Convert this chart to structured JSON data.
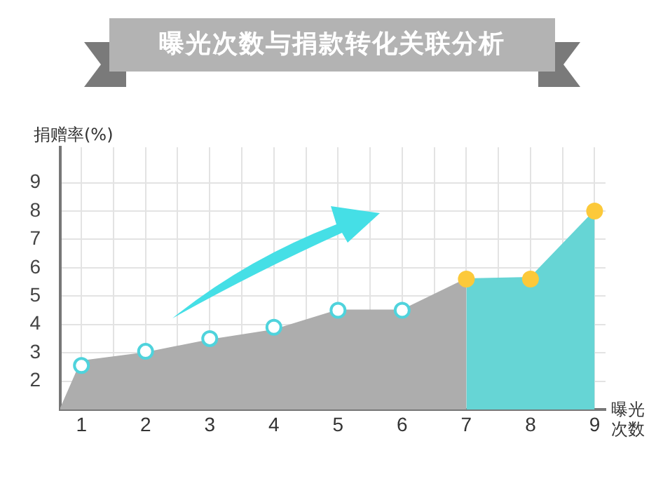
{
  "chart_data": {
    "type": "area",
    "title": "曝光次数与捐款转化关联分析",
    "xlabel": "曝光次数",
    "ylabel": "捐赠率(%)",
    "xlim": [
      0.67,
      9.17
    ],
    "ylim": [
      1,
      10.25
    ],
    "xticks": [
      1,
      {
        "value": 1.5,
        "label": null
      },
      2,
      {
        "value": 2.5,
        "label": null
      },
      3,
      {
        "value": 3.5,
        "label": null
      },
      4,
      {
        "value": 4.5,
        "label": null
      },
      5,
      {
        "value": 5.5,
        "label": null
      },
      6,
      {
        "value": 6.5,
        "label": null
      },
      7,
      {
        "value": 7.5,
        "label": null
      },
      8,
      {
        "value": 8.5,
        "label": null
      },
      9
    ],
    "yticks": [
      2,
      3,
      4,
      5,
      6,
      7,
      8,
      9
    ],
    "grid": true,
    "series": [
      {
        "color": "#adadad",
        "x": [
          0.67,
          1,
          2,
          3,
          4,
          5,
          6,
          7
        ],
        "values": [
          1,
          2.7,
          3.0,
          3.45,
          3.8,
          4.5,
          4.5,
          5.6
        ]
      },
      {
        "color": "#66d5d5",
        "x": [
          7,
          8,
          9
        ],
        "values": [
          5.6,
          5.65,
          8
        ]
      },
      {
        "type": "scatter",
        "color": "#4fd3dc",
        "marker": "circle",
        "x": [
          1,
          2,
          3,
          4,
          5,
          6
        ],
        "values": [
          2.55,
          3.05,
          3.5,
          3.9,
          4.5,
          4.5
        ]
      },
      {
        "type": "scatter",
        "color": "#fcc93a",
        "marker": "circle",
        "x": [
          7,
          8,
          9
        ],
        "values": [
          5.6,
          5.6,
          8
        ]
      }
    ]
  }
}
